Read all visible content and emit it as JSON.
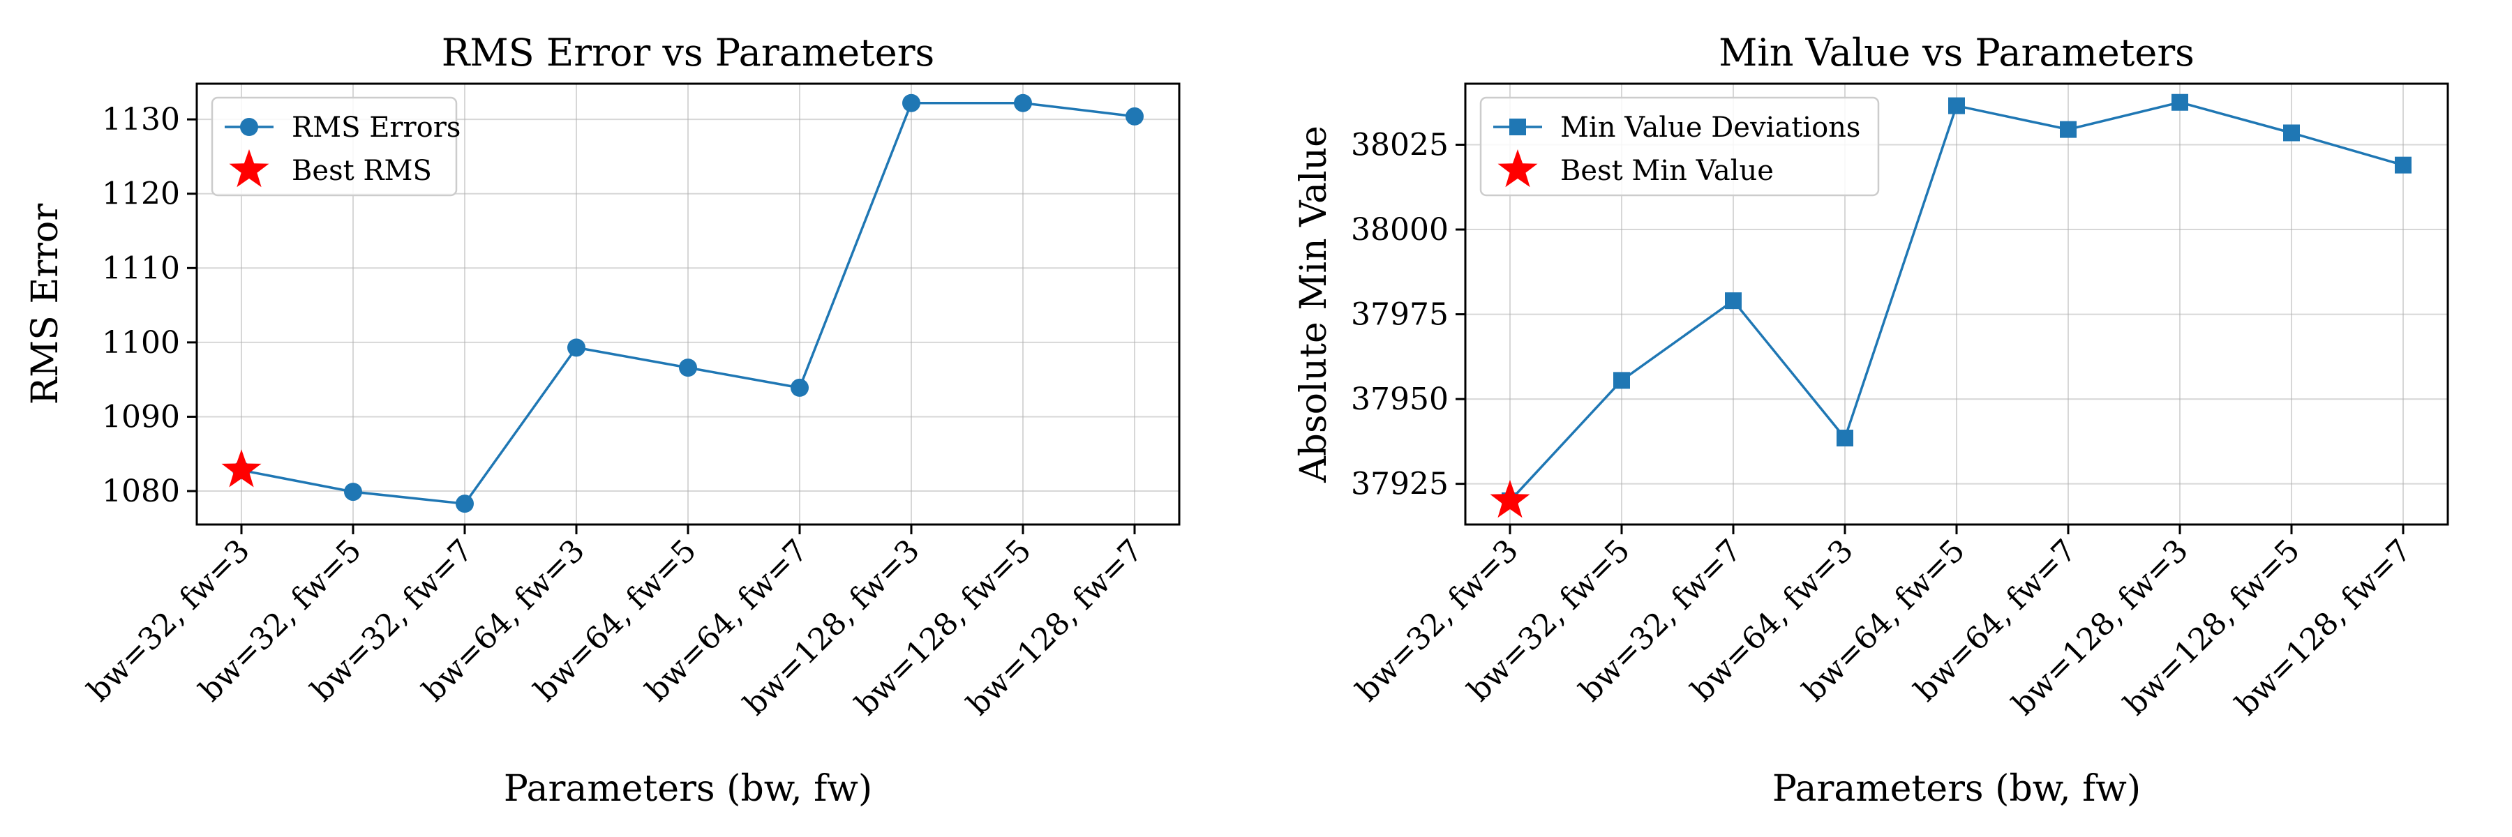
{
  "chart_data": [
    {
      "type": "line",
      "title": "RMS Error vs Parameters",
      "xlabel": "Parameters (bw, fw)",
      "ylabel": "RMS Error",
      "categories": [
        "bw=32, fw=3",
        "bw=32, fw=5",
        "bw=32, fw=7",
        "bw=64, fw=3",
        "bw=64, fw=5",
        "bw=64, fw=7",
        "bw=128, fw=3",
        "bw=128, fw=5",
        "bw=128, fw=7"
      ],
      "yticks": [
        1080,
        1090,
        1100,
        1110,
        1120,
        1130
      ],
      "ylim": [
        1075.5,
        1134.8
      ],
      "grid": true,
      "legend_position": "upper-left",
      "series": [
        {
          "name": "RMS Errors",
          "marker": "circle",
          "color": "#1f77b4",
          "values": [
            1082.8,
            1079.9,
            1078.3,
            1099.3,
            1096.6,
            1093.9,
            1132.2,
            1132.2,
            1130.4
          ]
        }
      ],
      "highlight": {
        "name": "Best RMS",
        "marker": "star",
        "color": "#ff0000",
        "index": 0,
        "value": 1082.8
      }
    },
    {
      "type": "line",
      "title": "Min Value vs Parameters",
      "xlabel": "Parameters (bw, fw)",
      "ylabel": "Absolute Min Value",
      "categories": [
        "bw=32, fw=3",
        "bw=32, fw=5",
        "bw=32, fw=7",
        "bw=64, fw=3",
        "bw=64, fw=5",
        "bw=64, fw=7",
        "bw=128, fw=3",
        "bw=128, fw=5",
        "bw=128, fw=7"
      ],
      "yticks": [
        37925,
        37950,
        37975,
        38000,
        38025
      ],
      "ylim": [
        37913,
        38043
      ],
      "grid": true,
      "legend_position": "upper-left",
      "series": [
        {
          "name": "Min Value Deviations",
          "marker": "square",
          "color": "#1f77b4",
          "values": [
            37920,
            37955.5,
            37979,
            37938.5,
            38036.5,
            38029.5,
            38037.5,
            38028.5,
            38019
          ]
        }
      ],
      "highlight": {
        "name": "Best Min Value",
        "marker": "star",
        "color": "#ff0000",
        "index": 0,
        "value": 37920
      }
    }
  ]
}
